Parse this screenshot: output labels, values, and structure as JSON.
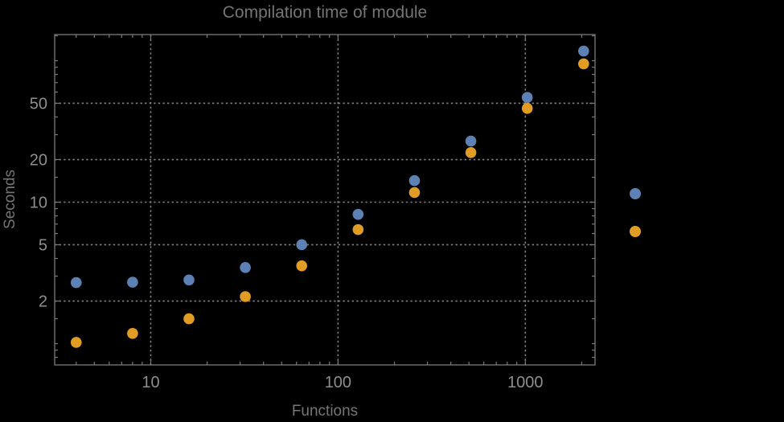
{
  "colors": {
    "background": "#000000",
    "frame": "#7a7a7a",
    "grid": "#828282",
    "tick_label": "#8e8e8e",
    "text": "#757575",
    "series1": "#5e81b5",
    "series2": "#e19c24"
  },
  "chart_data": {
    "type": "scatter",
    "title": "Compilation time of module",
    "xlabel": "Functions",
    "ylabel": "Seconds",
    "x_scale": "log",
    "y_scale": "log",
    "grid_style": "dotted",
    "x": [
      4,
      8,
      16,
      32,
      64,
      128,
      256,
      512,
      1024,
      2048
    ],
    "series": [
      {
        "label": "",
        "color": "#5e81b5",
        "values": [
          2.7,
          2.72,
          2.82,
          3.45,
          5.0,
          8.2,
          14.2,
          27,
          55,
          117
        ]
      },
      {
        "label": "",
        "color": "#e19c24",
        "values": [
          1.02,
          1.18,
          1.5,
          2.15,
          3.55,
          6.4,
          11.7,
          22.4,
          46,
          95
        ]
      }
    ],
    "x_range": [
      3.07,
      2356
    ],
    "y_range": [
      0.707,
      153
    ],
    "x_ticks": [
      10,
      100,
      1000
    ],
    "x_tick_labels": [
      "10",
      "100",
      "1000"
    ],
    "x_minor_ticks": [
      4,
      5,
      6,
      7,
      8,
      9,
      20,
      30,
      40,
      50,
      60,
      70,
      80,
      90,
      200,
      300,
      400,
      500,
      600,
      700,
      800,
      900,
      2000
    ],
    "y_ticks": [
      2,
      5,
      10,
      20,
      50
    ],
    "y_tick_labels": [
      "2",
      "5",
      "10",
      "20",
      "50"
    ],
    "y_minor_ticks": [
      0.8,
      0.9,
      1,
      1.5,
      3,
      4,
      6,
      7,
      8,
      9,
      15,
      30,
      40,
      60,
      70,
      80,
      90,
      100,
      150
    ],
    "grid_x": [
      10,
      100,
      1000
    ],
    "grid_y": [
      2,
      5,
      10,
      20,
      50
    ],
    "legend": {
      "markers": [
        {
          "color": "#5e81b5"
        },
        {
          "color": "#e19c24"
        }
      ],
      "labels": [
        "",
        ""
      ]
    },
    "marker_radius": 6.8
  }
}
